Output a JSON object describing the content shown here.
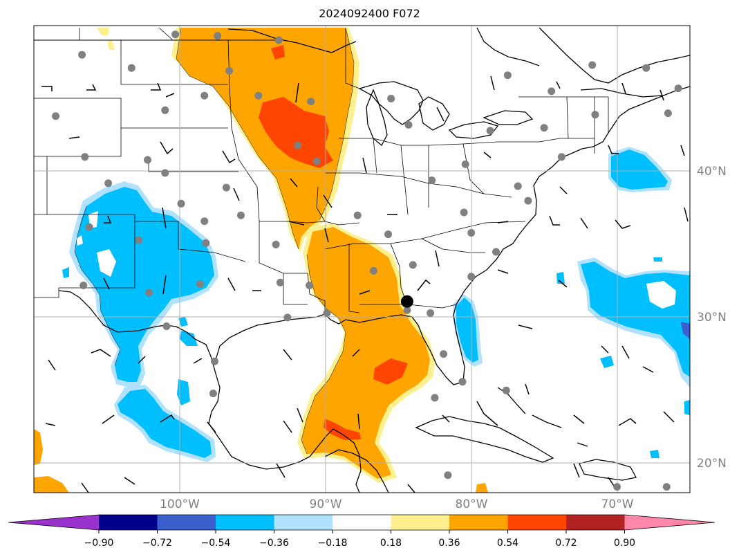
{
  "title": "2024092400 F072",
  "map": {
    "lon_range": [
      -110,
      -65
    ],
    "lat_range": [
      18,
      50
    ],
    "lat_labels": [
      "40°N",
      "30°N",
      "20°N"
    ],
    "lon_labels": [
      "100°W",
      "90°W",
      "80°W",
      "70°W"
    ],
    "grid": true,
    "highlight_marker": {
      "lon": -84.4,
      "lat": 31.1,
      "color": "#000000"
    }
  },
  "colorbar": {
    "extend": "both",
    "colors": [
      "#9932cc",
      "#00008b",
      "#3a5fcd",
      "#00bfff",
      "#b0e2ff",
      "#ffffff",
      "#fff08f",
      "#ffa500",
      "#ff4500",
      "#b22222",
      "#ff88aa"
    ],
    "tick_labels": [
      "−0.90",
      "−0.72",
      "−0.54",
      "−0.36",
      "−0.18",
      "0.18",
      "0.36",
      "0.54",
      "0.72",
      "0.90"
    ]
  },
  "stations": [
    {
      "lon": -106.7,
      "lat": 48.0
    },
    {
      "lon": -100.3,
      "lat": 49.4
    },
    {
      "lon": -97.4,
      "lat": 49.3
    },
    {
      "lon": -103.3,
      "lat": 47.1
    },
    {
      "lon": -101.0,
      "lat": 44.2
    },
    {
      "lon": -108.5,
      "lat": 43.8
    },
    {
      "lon": -106.5,
      "lat": 41.0
    },
    {
      "lon": -102.2,
      "lat": 40.8
    },
    {
      "lon": -101.0,
      "lat": 39.9
    },
    {
      "lon": -104.9,
      "lat": 39.2
    },
    {
      "lon": -99.9,
      "lat": 37.8
    },
    {
      "lon": -106.2,
      "lat": 36.2
    },
    {
      "lon": -102.8,
      "lat": 35.3
    },
    {
      "lon": -98.3,
      "lat": 36.6
    },
    {
      "lon": -98.2,
      "lat": 35.1
    },
    {
      "lon": -98.6,
      "lat": 32.3
    },
    {
      "lon": -106.6,
      "lat": 32.2
    },
    {
      "lon": -102.1,
      "lat": 31.7
    },
    {
      "lon": -100.9,
      "lat": 29.4
    },
    {
      "lon": -97.6,
      "lat": 27.0
    },
    {
      "lon": -97.7,
      "lat": 24.8
    },
    {
      "lon": -96.6,
      "lat": 46.9
    },
    {
      "lon": -94.6,
      "lat": 45.2
    },
    {
      "lon": -98.3,
      "lat": 45.2
    },
    {
      "lon": -93.2,
      "lat": 49.0
    },
    {
      "lon": -91.9,
      "lat": 41.8
    },
    {
      "lon": -90.6,
      "lat": 40.7
    },
    {
      "lon": -96.8,
      "lat": 38.9
    },
    {
      "lon": -95.8,
      "lat": 37.0
    },
    {
      "lon": -93.4,
      "lat": 35.0
    },
    {
      "lon": -91.0,
      "lat": 44.8
    },
    {
      "lon": -87.8,
      "lat": 37.0
    },
    {
      "lon": -85.7,
      "lat": 35.7
    },
    {
      "lon": -91.1,
      "lat": 32.2
    },
    {
      "lon": -93.1,
      "lat": 32.4
    },
    {
      "lon": -92.6,
      "lat": 30.0
    },
    {
      "lon": -89.9,
      "lat": 30.3
    },
    {
      "lon": -86.7,
      "lat": 33.2
    },
    {
      "lon": -84.4,
      "lat": 30.5
    },
    {
      "lon": -84.0,
      "lat": 33.6
    },
    {
      "lon": -82.7,
      "lat": 39.4
    },
    {
      "lon": -84.3,
      "lat": 43.2
    },
    {
      "lon": -85.5,
      "lat": 45.0
    },
    {
      "lon": -82.8,
      "lat": 30.3
    },
    {
      "lon": -81.9,
      "lat": 27.5
    },
    {
      "lon": -80.4,
      "lat": 40.5
    },
    {
      "lon": -80.5,
      "lat": 37.2
    },
    {
      "lon": -80.0,
      "lat": 35.8
    },
    {
      "lon": -80.0,
      "lat": 32.8
    },
    {
      "lon": -78.3,
      "lat": 34.5
    },
    {
      "lon": -78.7,
      "lat": 42.8
    },
    {
      "lon": -76.1,
      "lat": 38.0
    },
    {
      "lon": -76.8,
      "lat": 39.0
    },
    {
      "lon": -75.0,
      "lat": 43.0
    },
    {
      "lon": -74.5,
      "lat": 45.5
    },
    {
      "lon": -77.5,
      "lat": 46.6
    },
    {
      "lon": -73.8,
      "lat": 41.0
    },
    {
      "lon": -71.7,
      "lat": 47.3
    },
    {
      "lon": -71.5,
      "lat": 43.9
    },
    {
      "lon": -68.0,
      "lat": 47.1
    },
    {
      "lon": -66.5,
      "lat": 44.0
    },
    {
      "lon": -65.8,
      "lat": 45.7
    },
    {
      "lon": -77.6,
      "lat": 25.0
    },
    {
      "lon": -80.6,
      "lat": 25.6
    },
    {
      "lon": -82.5,
      "lat": 24.5
    },
    {
      "lon": -81.6,
      "lat": 19.2
    },
    {
      "lon": -66.6,
      "lat": 18.4
    },
    {
      "lon": -70.0,
      "lat": 18.4
    }
  ]
}
